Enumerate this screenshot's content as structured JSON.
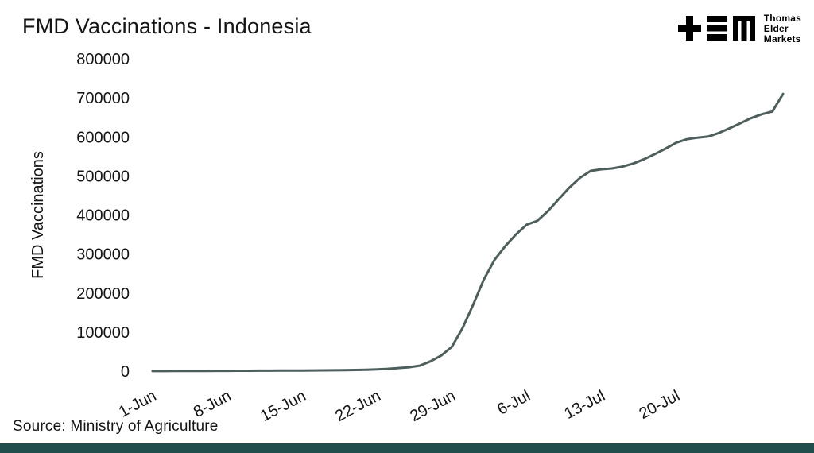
{
  "page": {
    "title": "FMD Vaccinations - Indonesia",
    "source": "Source: Ministry of Agriculture",
    "accent_bar_color": "#1f4e4c",
    "text_color": "#141414"
  },
  "logo": {
    "line1": "Thomas",
    "line2": "Elder",
    "line3": "Markets"
  },
  "chart_data": {
    "type": "line",
    "title": "FMD Vaccinations - Indonesia",
    "xlabel": "",
    "ylabel": "FMD Vaccinations",
    "ylim": [
      0,
      800000
    ],
    "ytick_step": 100000,
    "ytick_labels": [
      "0",
      "100000",
      "200000",
      "300000",
      "400000",
      "500000",
      "600000",
      "700000",
      "800000"
    ],
    "xtick_labels": [
      "1-Jun",
      "8-Jun",
      "15-Jun",
      "22-Jun",
      "29-Jun",
      "6-Jul",
      "13-Jul",
      "20-Jul"
    ],
    "xtick_indices": [
      0,
      7,
      14,
      21,
      28,
      35,
      42,
      49
    ],
    "grid": false,
    "legend": "none",
    "line_color": "#4d5e5c",
    "x": [
      "1-Jun",
      "2-Jun",
      "3-Jun",
      "4-Jun",
      "5-Jun",
      "6-Jun",
      "7-Jun",
      "8-Jun",
      "9-Jun",
      "10-Jun",
      "11-Jun",
      "12-Jun",
      "13-Jun",
      "14-Jun",
      "15-Jun",
      "16-Jun",
      "17-Jun",
      "18-Jun",
      "19-Jun",
      "20-Jun",
      "21-Jun",
      "22-Jun",
      "23-Jun",
      "24-Jun",
      "25-Jun",
      "26-Jun",
      "27-Jun",
      "28-Jun",
      "29-Jun",
      "30-Jun",
      "1-Jul",
      "2-Jul",
      "3-Jul",
      "4-Jul",
      "5-Jul",
      "6-Jul",
      "7-Jul",
      "8-Jul",
      "9-Jul",
      "10-Jul",
      "11-Jul",
      "12-Jul",
      "13-Jul",
      "14-Jul",
      "15-Jul",
      "16-Jul",
      "17-Jul",
      "18-Jul",
      "19-Jul",
      "20-Jul",
      "21-Jul",
      "22-Jul",
      "23-Jul",
      "24-Jul",
      "25-Jul",
      "26-Jul",
      "27-Jul",
      "28-Jul",
      "29-Jul",
      "30-Jul"
    ],
    "values": [
      200,
      300,
      400,
      500,
      600,
      700,
      800,
      900,
      1000,
      1100,
      1200,
      1300,
      1400,
      1500,
      1700,
      1900,
      2100,
      2300,
      2600,
      3000,
      3500,
      4500,
      6000,
      8000,
      10000,
      14000,
      25000,
      40000,
      62000,
      110000,
      170000,
      235000,
      285000,
      320000,
      350000,
      375000,
      385000,
      410000,
      440000,
      470000,
      495000,
      513000,
      517000,
      519000,
      524000,
      532000,
      543000,
      556000,
      570000,
      585000,
      594000,
      598000,
      601000,
      610000,
      622000,
      635000,
      648000,
      658000,
      665000,
      710000
    ]
  }
}
